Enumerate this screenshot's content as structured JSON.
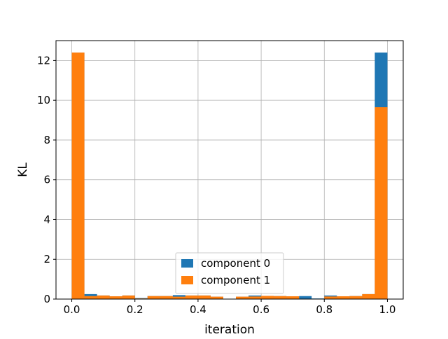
{
  "chart_data": {
    "type": "bar",
    "subtype": "histogram-overlay",
    "xlabel": "iteration",
    "ylabel": "KL",
    "xlim": [
      -0.05,
      1.05
    ],
    "ylim": [
      0,
      13
    ],
    "xticks": [
      0.0,
      0.2,
      0.4,
      0.6,
      0.8,
      1.0
    ],
    "xtick_labels": [
      "0.0",
      "0.2",
      "0.4",
      "0.6",
      "0.8",
      "1.0"
    ],
    "yticks": [
      0,
      2,
      4,
      6,
      8,
      10,
      12
    ],
    "ytick_labels": [
      "0",
      "2",
      "4",
      "6",
      "8",
      "10",
      "12"
    ],
    "grid": true,
    "legend_position": "bottom-center",
    "bin_width": 0.04,
    "bin_starts": [
      0.0,
      0.04,
      0.08,
      0.12,
      0.16,
      0.2,
      0.24,
      0.28,
      0.32,
      0.36,
      0.4,
      0.44,
      0.48,
      0.52,
      0.56,
      0.6,
      0.64,
      0.68,
      0.72,
      0.76,
      0.8,
      0.84,
      0.88,
      0.92,
      0.96
    ],
    "series": [
      {
        "name": "component 0",
        "color": "#1f77b4",
        "values": [
          12.4,
          0.25,
          0.18,
          0.14,
          0.18,
          0.05,
          0.15,
          0.15,
          0.2,
          0.18,
          0.18,
          0.12,
          0.0,
          0.12,
          0.18,
          0.16,
          0.15,
          0.14,
          0.15,
          0.03,
          0.18,
          0.14,
          0.15,
          0.25,
          12.4
        ]
      },
      {
        "name": "component 1",
        "color": "#ff7f0e",
        "values": [
          12.4,
          0.15,
          0.18,
          0.14,
          0.18,
          0.03,
          0.15,
          0.15,
          0.12,
          0.18,
          0.18,
          0.12,
          0.0,
          0.12,
          0.13,
          0.16,
          0.15,
          0.14,
          0.0,
          0.0,
          0.13,
          0.14,
          0.15,
          0.25,
          9.65
        ]
      }
    ]
  }
}
